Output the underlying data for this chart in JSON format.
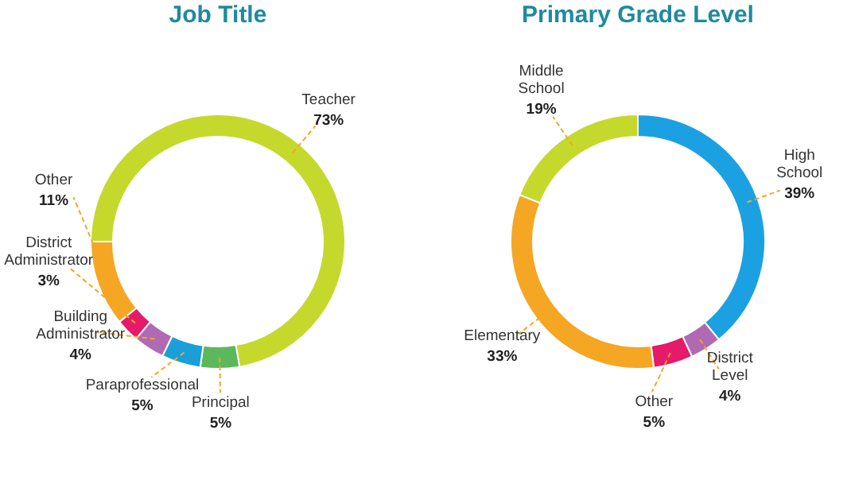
{
  "chart_data": [
    {
      "type": "donut",
      "title": "Job Title",
      "categories": [
        "Teacher",
        "Principal",
        "Paraprofessional",
        "Building Administrator",
        "District Administrator",
        "Other"
      ],
      "values": [
        73,
        5,
        5,
        4,
        3,
        11
      ],
      "value_labels": [
        "73%",
        "5%",
        "5%",
        "4%",
        "3%",
        "11%"
      ],
      "colors": [
        "#c5d92d",
        "#5cb85c",
        "#1a9fd9",
        "#b06ab3",
        "#e6196b",
        "#f5a623"
      ]
    },
    {
      "type": "donut",
      "title": "Primary Grade Level",
      "categories": [
        "High School",
        "District Level",
        "Other",
        "Elementary",
        "Middle School"
      ],
      "values": [
        39,
        4,
        5,
        33,
        19
      ],
      "value_labels": [
        "39%",
        "4%",
        "5%",
        "33%",
        "19%"
      ],
      "colors": [
        "#1ba1e2",
        "#b06ab3",
        "#e6196b",
        "#f5a623",
        "#c5d92d"
      ]
    }
  ]
}
